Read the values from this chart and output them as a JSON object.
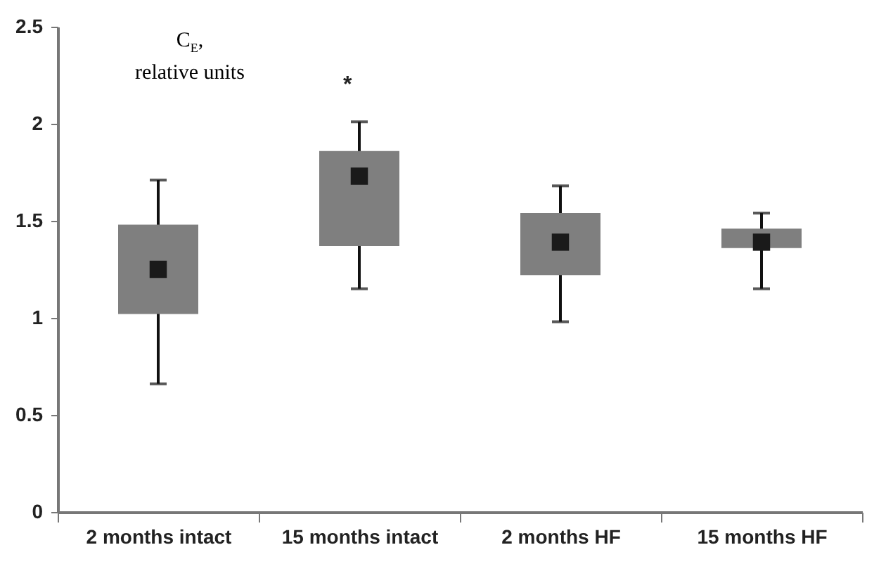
{
  "chart_data": {
    "type": "box",
    "ylabel": "C$_{E}$, relative units",
    "categories": [
      "2 months intact",
      "15 months intact",
      "2 months HF",
      "15 months HF"
    ],
    "color": "#7f7f7f",
    "boxes": [
      {
        "low": 0.66,
        "q1": 1.02,
        "q3": 1.48,
        "high": 1.71,
        "mean": 1.25
      },
      {
        "low": 1.15,
        "q1": 1.37,
        "q3": 1.86,
        "high": 2.01,
        "mean": 1.73
      },
      {
        "low": 0.98,
        "q1": 1.22,
        "q3": 1.54,
        "high": 1.68,
        "mean": 1.39
      },
      {
        "low": 1.15,
        "q1": 1.36,
        "q3": 1.46,
        "high": 1.54,
        "mean": 1.39
      }
    ],
    "ylim": [
      0,
      2.5
    ],
    "yticks": [
      0,
      0.5,
      1,
      1.5,
      2,
      2.5
    ],
    "annotations": [
      "*"
    ]
  }
}
